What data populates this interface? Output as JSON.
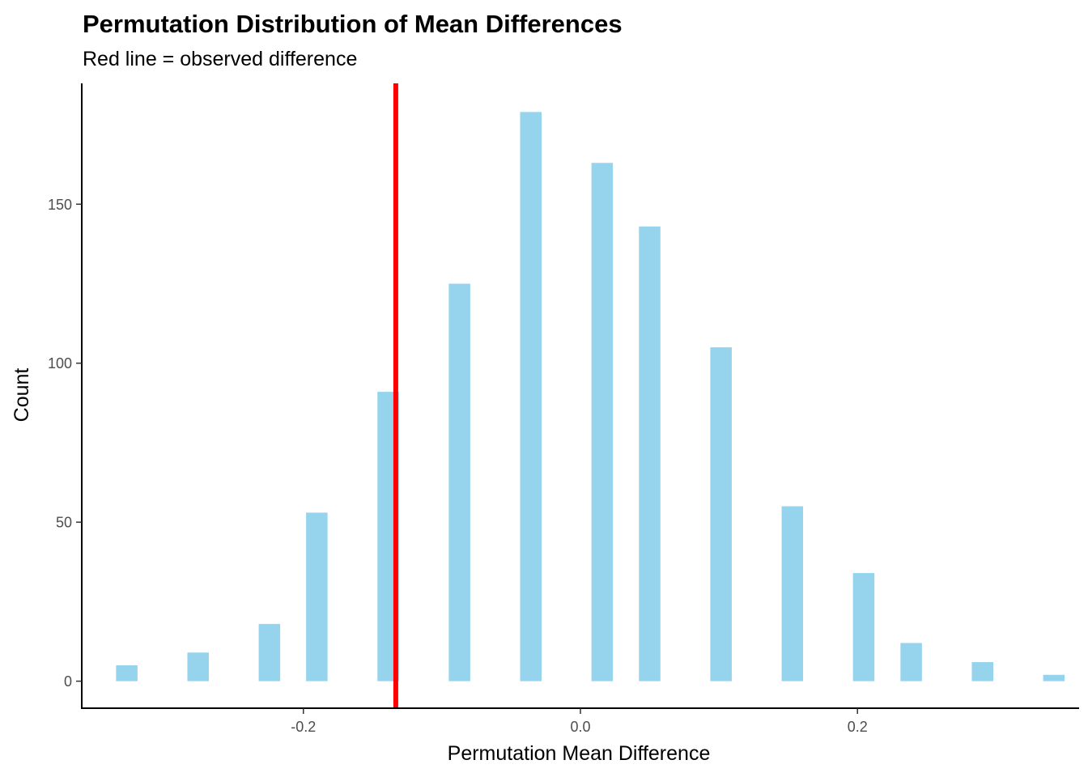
{
  "chart_data": {
    "type": "bar",
    "title": "Permutation Distribution of Mean Differences",
    "subtitle": "Red line = observed difference",
    "xlabel": "Permutation Mean Difference",
    "ylabel": "Count",
    "xlim": [
      -0.36,
      0.36
    ],
    "ylim": [
      -8.5,
      188
    ],
    "x_ticks": [
      {
        "value": -0.2,
        "label": "-0.2"
      },
      {
        "value": 0.0,
        "label": "0.0"
      },
      {
        "value": 0.2,
        "label": "0.2"
      }
    ],
    "y_ticks": [
      {
        "value": 0,
        "label": "0"
      },
      {
        "value": 50,
        "label": "50"
      },
      {
        "value": 100,
        "label": "100"
      },
      {
        "value": 150,
        "label": "150"
      }
    ],
    "bin_width": 0.0155,
    "bars": [
      {
        "x": -0.3275,
        "count": 5
      },
      {
        "x": -0.276,
        "count": 9
      },
      {
        "x": -0.2245,
        "count": 18
      },
      {
        "x": -0.1903,
        "count": 53
      },
      {
        "x": -0.1388,
        "count": 91
      },
      {
        "x": -0.0873,
        "count": 125
      },
      {
        "x": -0.0358,
        "count": 179
      },
      {
        "x": 0.0157,
        "count": 163
      },
      {
        "x": 0.05,
        "count": 143
      },
      {
        "x": 0.1015,
        "count": 105
      },
      {
        "x": 0.153,
        "count": 55
      },
      {
        "x": 0.2045,
        "count": 34
      },
      {
        "x": 0.2388,
        "count": 12
      },
      {
        "x": 0.2903,
        "count": 6
      },
      {
        "x": 0.3418,
        "count": 2
      }
    ],
    "observed_difference": -0.1333,
    "grid": false,
    "bar_color": "#87ceeb",
    "bar_opacity": 0.88,
    "line_color": "#ff0000"
  }
}
